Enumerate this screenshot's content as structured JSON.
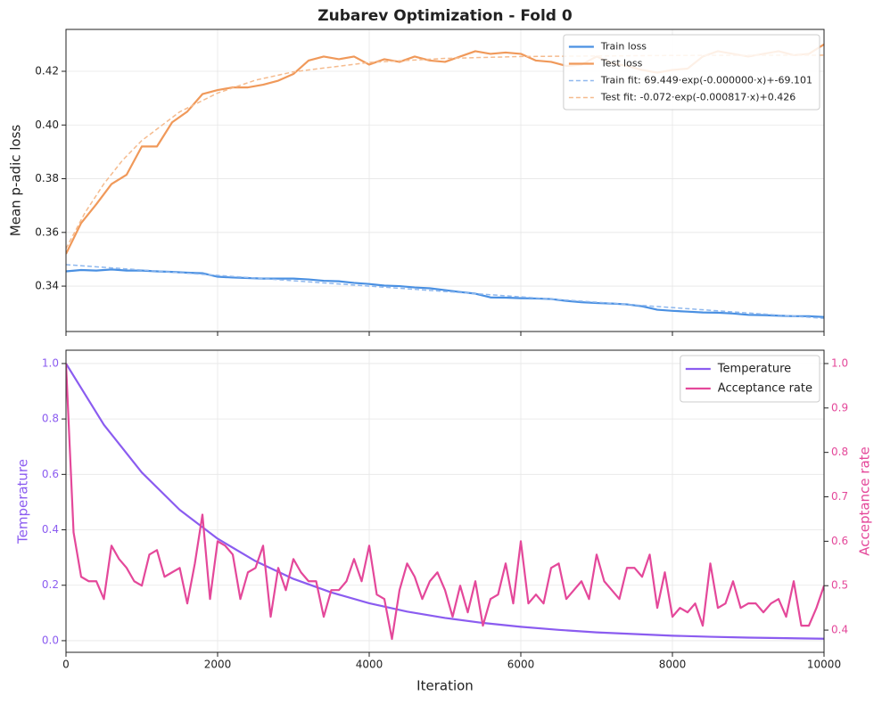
{
  "chart_data": [
    {
      "type": "line",
      "title": "Zubarev Optimization - Fold 0",
      "ylabel": "Mean p-adic loss",
      "xlim": [
        0,
        10000
      ],
      "xticks": [
        0,
        2000,
        4000,
        6000,
        8000,
        10000
      ],
      "xticklabels": false,
      "ylim": [
        0.3231,
        0.4356
      ],
      "yticks": [
        0.34,
        0.36,
        0.38,
        {
          "value": 0.4,
          "label": "0.40"
        },
        0.42
      ],
      "grid": true,
      "legend": "upper right",
      "series": [
        {
          "name": "Train loss",
          "color": "#4a90e2",
          "linestyle": "solid",
          "x": [
            0,
            200,
            400,
            600,
            800,
            1000,
            1200,
            1400,
            1600,
            1800,
            2000,
            2200,
            2400,
            2600,
            2800,
            3000,
            3200,
            3400,
            3600,
            3800,
            4000,
            4200,
            4400,
            4600,
            4800,
            5000,
            5200,
            5400,
            5600,
            5800,
            6000,
            6200,
            6400,
            6600,
            6800,
            7000,
            7200,
            7400,
            7600,
            7800,
            8000,
            8200,
            8400,
            8600,
            8800,
            9000,
            9200,
            9400,
            9600,
            9800,
            10000
          ],
          "values": [
            0.3455,
            0.346,
            0.3458,
            0.3462,
            0.3458,
            0.3458,
            0.3455,
            0.3453,
            0.345,
            0.3448,
            0.3435,
            0.3432,
            0.343,
            0.3428,
            0.3428,
            0.3428,
            0.3425,
            0.342,
            0.3418,
            0.3412,
            0.3408,
            0.3402,
            0.34,
            0.3395,
            0.3392,
            0.3385,
            0.3378,
            0.3372,
            0.3358,
            0.3357,
            0.3355,
            0.3354,
            0.3352,
            0.3345,
            0.334,
            0.3337,
            0.3335,
            0.3332,
            0.3325,
            0.3312,
            0.3308,
            0.3305,
            0.3302,
            0.3301,
            0.3298,
            0.3293,
            0.3292,
            0.329,
            0.3288,
            0.3288,
            0.3285
          ]
        },
        {
          "name": "Test loss",
          "color": "#f0995a",
          "linestyle": "solid",
          "x": [
            0,
            200,
            400,
            600,
            800,
            1000,
            1200,
            1400,
            1600,
            1800,
            2000,
            2200,
            2400,
            2600,
            2800,
            3000,
            3200,
            3400,
            3600,
            3800,
            4000,
            4200,
            4400,
            4600,
            4800,
            5000,
            5200,
            5400,
            5600,
            5800,
            6000,
            6200,
            6400,
            6600,
            6800,
            7000,
            7200,
            7400,
            7600,
            7800,
            8000,
            8200,
            8400,
            8600,
            8800,
            9000,
            9200,
            9400,
            9600,
            9800,
            10000
          ],
          "values": [
            0.352,
            0.3635,
            0.3705,
            0.378,
            0.3815,
            0.392,
            0.392,
            0.401,
            0.405,
            0.4115,
            0.413,
            0.414,
            0.414,
            0.415,
            0.4165,
            0.419,
            0.424,
            0.4255,
            0.4245,
            0.4255,
            0.4225,
            0.4245,
            0.4235,
            0.4255,
            0.424,
            0.4235,
            0.4255,
            0.4275,
            0.4265,
            0.427,
            0.4265,
            0.424,
            0.4235,
            0.422,
            0.4225,
            0.4255,
            0.423,
            0.422,
            0.4205,
            0.4195,
            0.4205,
            0.421,
            0.4255,
            0.4275,
            0.4265,
            0.4255,
            0.4265,
            0.4275,
            0.426,
            0.4265,
            0.43
          ]
        },
        {
          "name": "Train fit: 69.449·exp(-0.000000·x)+-69.101",
          "color": "#8fb8ee",
          "linestyle": "dashed",
          "x": [
            0,
            1000,
            2000,
            3000,
            4000,
            5000,
            6000,
            7000,
            8000,
            9000,
            10000
          ],
          "values": [
            0.348,
            0.346,
            0.344,
            0.342,
            0.34,
            0.338,
            0.336,
            0.334,
            0.332,
            0.33,
            0.328
          ]
        },
        {
          "name": "Test fit: -0.072·exp(-0.000817·x)+0.426",
          "color": "#f5bb8e",
          "linestyle": "dashed",
          "x": [
            0,
            250,
            500,
            750,
            1000,
            1500,
            2000,
            2500,
            3000,
            4000,
            5000,
            6000,
            8000,
            10000
          ],
          "values": [
            0.354,
            0.3673,
            0.3781,
            0.387,
            0.3942,
            0.4049,
            0.4119,
            0.4167,
            0.4198,
            0.4233,
            0.4248,
            0.4255,
            0.4259,
            0.426
          ]
        }
      ]
    },
    {
      "type": "line",
      "xlabel": "Iteration",
      "ylabel": "Temperature",
      "y2label": "Acceptance rate",
      "xlim": [
        0,
        10000
      ],
      "xticks": [
        0,
        2000,
        4000,
        6000,
        8000,
        10000
      ],
      "xticklabels": true,
      "ylim": [
        -0.042,
        1.048
      ],
      "yticks": [
        {
          "value": 0,
          "label": "0.0"
        },
        0.2,
        0.4,
        0.6,
        0.8,
        {
          "value": 1,
          "label": "1.0"
        }
      ],
      "y2lim": [
        0.35,
        1.03
      ],
      "y2ticks": [
        0.4,
        0.5,
        0.6,
        0.7,
        0.8,
        0.9,
        {
          "value": 1,
          "label": "1.0"
        }
      ],
      "grid": true,
      "legend": "upper right",
      "series": [
        {
          "name": "Temperature",
          "color": "#8b5cf0",
          "linestyle": "solid",
          "x": [
            0,
            500,
            1000,
            1500,
            2000,
            2500,
            3000,
            3500,
            4000,
            4500,
            5000,
            5500,
            6000,
            6500,
            7000,
            7500,
            8000,
            8500,
            9000,
            9500,
            10000
          ],
          "values": [
            1,
            0.779,
            0.607,
            0.472,
            0.368,
            0.287,
            0.223,
            0.174,
            0.135,
            0.105,
            0.082,
            0.064,
            0.05,
            0.039,
            0.03,
            0.024,
            0.018,
            0.014,
            0.011,
            0.009,
            0.007
          ]
        },
        {
          "name": "Acceptance rate",
          "color": "#e4489a",
          "linestyle": "solid",
          "axis": "y2",
          "x": [
            0,
            100,
            200,
            300,
            400,
            500,
            600,
            700,
            800,
            900,
            1000,
            1100,
            1200,
            1300,
            1400,
            1500,
            1600,
            1700,
            1800,
            1900,
            2000,
            2100,
            2200,
            2300,
            2400,
            2500,
            2600,
            2700,
            2800,
            2900,
            3000,
            3100,
            3200,
            3300,
            3400,
            3500,
            3600,
            3700,
            3800,
            3900,
            4000,
            4100,
            4200,
            4300,
            4400,
            4500,
            4600,
            4700,
            4800,
            4900,
            5000,
            5100,
            5200,
            5300,
            5400,
            5500,
            5600,
            5700,
            5800,
            5900,
            6000,
            6100,
            6200,
            6300,
            6400,
            6500,
            6600,
            6700,
            6800,
            6900,
            7000,
            7100,
            7200,
            7300,
            7400,
            7500,
            7600,
            7700,
            7800,
            7900,
            8000,
            8100,
            8200,
            8300,
            8400,
            8500,
            8600,
            8700,
            8800,
            8900,
            9000,
            9100,
            9200,
            9300,
            9400,
            9500,
            9600,
            9700,
            9800,
            9900,
            10000
          ],
          "values": [
            1.0,
            0.62,
            0.52,
            0.51,
            0.51,
            0.47,
            0.59,
            0.56,
            0.54,
            0.51,
            0.5,
            0.57,
            0.58,
            0.52,
            0.53,
            0.54,
            0.46,
            0.55,
            0.66,
            0.47,
            0.6,
            0.59,
            0.57,
            0.47,
            0.53,
            0.54,
            0.59,
            0.43,
            0.54,
            0.49,
            0.56,
            0.53,
            0.51,
            0.51,
            0.43,
            0.49,
            0.49,
            0.51,
            0.56,
            0.51,
            0.59,
            0.48,
            0.47,
            0.38,
            0.49,
            0.55,
            0.52,
            0.47,
            0.51,
            0.53,
            0.49,
            0.43,
            0.5,
            0.44,
            0.51,
            0.41,
            0.47,
            0.48,
            0.55,
            0.46,
            0.6,
            0.46,
            0.48,
            0.46,
            0.54,
            0.55,
            0.47,
            0.49,
            0.51,
            0.47,
            0.57,
            0.51,
            0.49,
            0.47,
            0.54,
            0.54,
            0.52,
            0.57,
            0.45,
            0.53,
            0.43,
            0.45,
            0.44,
            0.46,
            0.41,
            0.55,
            0.45,
            0.46,
            0.51,
            0.45,
            0.46,
            0.46,
            0.44,
            0.46,
            0.47,
            0.43,
            0.51,
            0.41,
            0.41,
            0.45,
            0.5
          ]
        }
      ]
    }
  ]
}
